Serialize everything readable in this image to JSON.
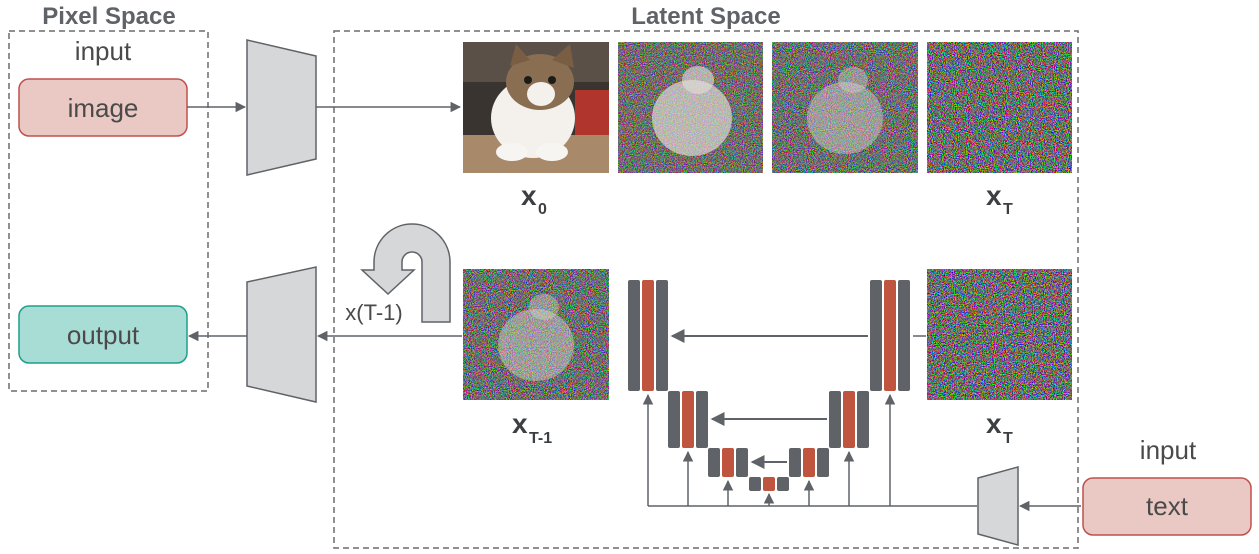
{
  "pixel_space": {
    "title": "Pixel Space",
    "input_label": "input",
    "image_box": "image",
    "output_box": "output"
  },
  "latent_space": {
    "title": "Latent Space",
    "forward_labels": {
      "x0_main": "x",
      "x0_sub": "0",
      "xT_main": "x",
      "xT_sub": "T"
    },
    "reverse_labels": {
      "xT1_main": "x",
      "xT1_sub": "T-1",
      "xT_main": "x",
      "xT_sub": "T"
    },
    "loop_label": "x(T-1)"
  },
  "conditioning": {
    "input_label": "input",
    "text_box": "text"
  },
  "colors": {
    "image_box_fill": "#eac9c4",
    "image_box_stroke": "#c0504d",
    "output_box_fill": "#a8ddd6",
    "output_box_stroke": "#1e9e8a",
    "text_box_fill": "#eac9c4",
    "text_box_stroke": "#c0504d",
    "unet_dark": "#5f6368",
    "unet_accent": "#c0553f",
    "encoder_fill": "#d6d7d9",
    "arrow": "#5f6368"
  },
  "icons": [
    "encoder-trapezoid-icon",
    "decoder-trapezoid-icon",
    "text-encoder-trapezoid-icon",
    "u-turn-arrow-icon",
    "unet-icon"
  ]
}
